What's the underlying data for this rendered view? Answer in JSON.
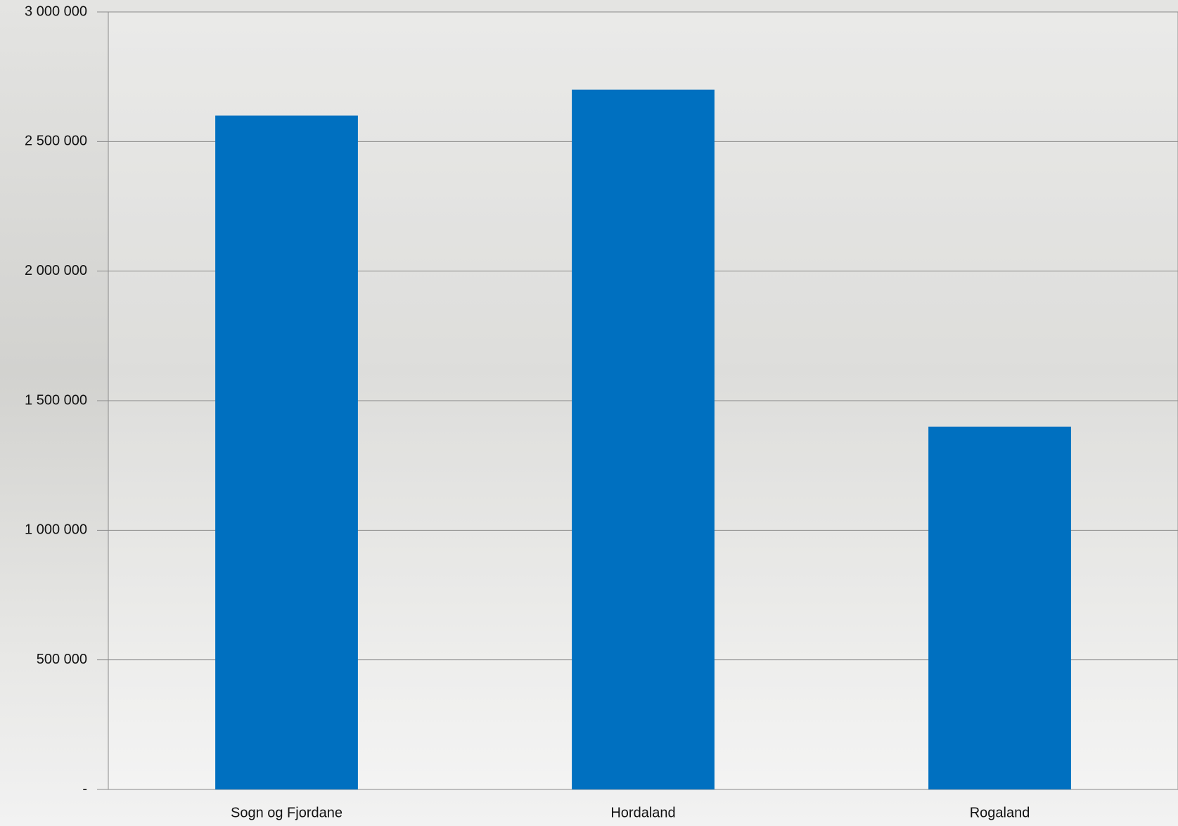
{
  "chart_data": {
    "type": "bar",
    "categories": [
      "Sogn og Fjordane",
      "Hordaland",
      "Rogaland"
    ],
    "values": [
      2600000,
      2700000,
      1400000
    ],
    "color": "#0070c0",
    "ylim": [
      0,
      3000000
    ],
    "yticks": [
      {
        "value": 0,
        "label": "-"
      },
      {
        "value": 500000,
        "label": "500 000"
      },
      {
        "value": 1000000,
        "label": "1 000 000"
      },
      {
        "value": 1500000,
        "label": "1 500 000"
      },
      {
        "value": 2000000,
        "label": "2 000 000"
      },
      {
        "value": 2500000,
        "label": "2 500 000"
      },
      {
        "value": 3000000,
        "label": "3 000 000"
      }
    ],
    "grid": true
  }
}
